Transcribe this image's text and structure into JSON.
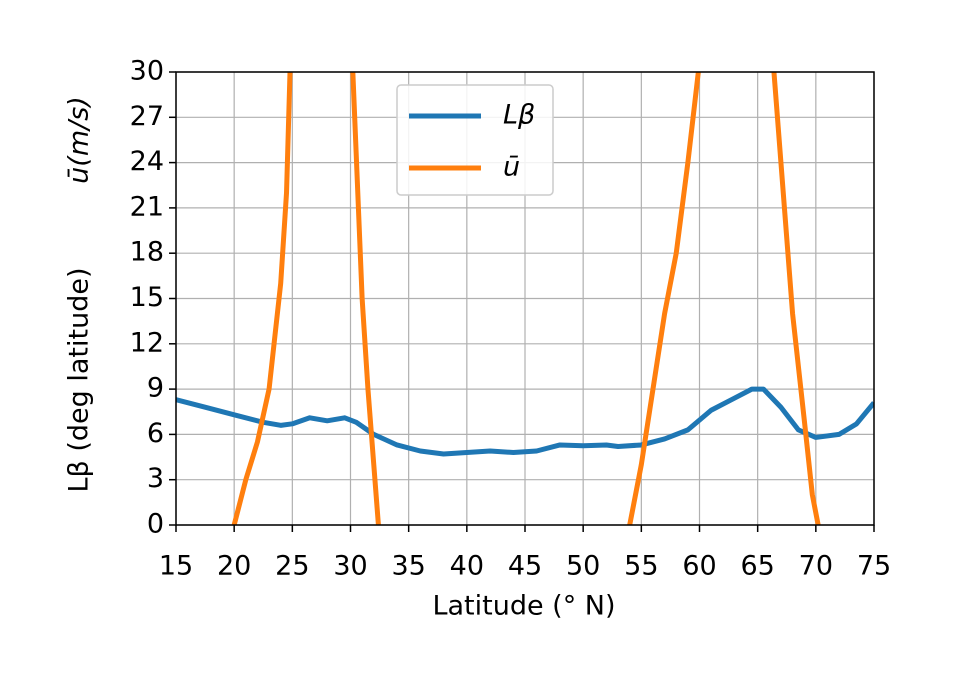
{
  "chart_data": {
    "type": "line",
    "xlabel": "Latitude (° N)",
    "ylabel": [
      "Lβ (deg latitude)",
      "ū(m/s)"
    ],
    "xlim": [
      15,
      75
    ],
    "xticks": [
      15,
      20,
      25,
      30,
      35,
      40,
      45,
      50,
      55,
      60,
      65,
      70,
      75
    ],
    "ylim": [
      0,
      30
    ],
    "yticks": [
      0,
      3,
      6,
      9,
      12,
      15,
      18,
      21,
      24,
      27,
      30
    ],
    "grid": true,
    "legend": "upper center",
    "series": [
      {
        "name": "Lβ",
        "color": "#1f77b4",
        "x": [
          15,
          17.5,
          20,
          22.5,
          24,
          25,
          26.5,
          28,
          29.5,
          30.5,
          32,
          34,
          36,
          38,
          40,
          42,
          44,
          46,
          48,
          50,
          52,
          53,
          55,
          57,
          59,
          61,
          63,
          64.5,
          65.5,
          67,
          68.5,
          70,
          72,
          73.5,
          75
        ],
        "values": [
          8.3,
          7.8,
          7.3,
          6.8,
          6.6,
          6.7,
          7.1,
          6.9,
          7.1,
          6.8,
          6.0,
          5.3,
          4.9,
          4.7,
          4.8,
          4.9,
          4.8,
          4.9,
          5.3,
          5.25,
          5.3,
          5.2,
          5.3,
          5.7,
          6.3,
          7.6,
          8.4,
          9.0,
          9.0,
          7.8,
          6.3,
          5.8,
          6.0,
          6.7,
          8.1
        ]
      },
      {
        "name": "ū",
        "color": "#ff7f0e",
        "x": [
          20,
          21,
          22,
          23,
          24,
          24.5,
          24.8,
          27,
          30.2,
          31,
          31.5,
          32,
          32.4,
          43,
          54,
          55,
          56,
          57,
          58,
          59,
          59.9,
          63,
          66.4,
          67,
          68,
          69,
          69.7,
          70.2
        ],
        "values": [
          0,
          3,
          5.5,
          9,
          16,
          22,
          30,
          null,
          30,
          15,
          9,
          4,
          0,
          null,
          0,
          4,
          9,
          14,
          18,
          24,
          30,
          null,
          30,
          24,
          14,
          7,
          2,
          0
        ]
      }
    ]
  }
}
